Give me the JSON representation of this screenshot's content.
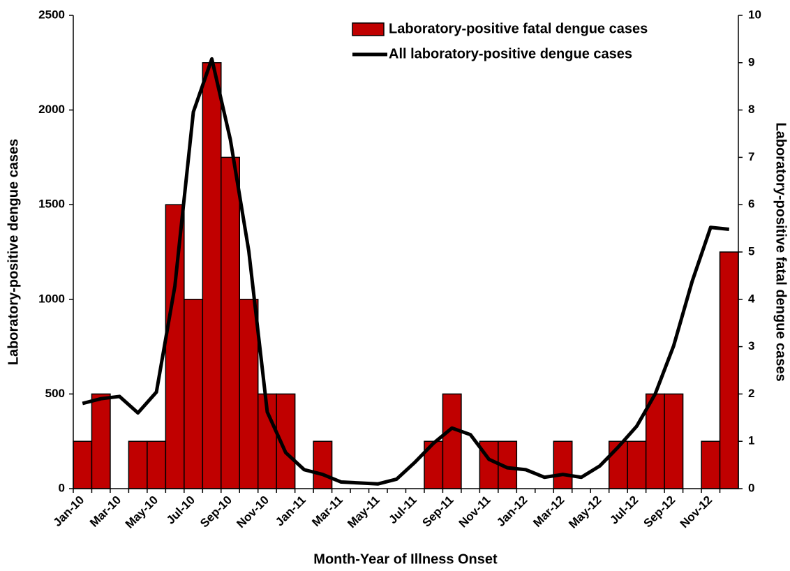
{
  "chart_data": {
    "type": "bar-line",
    "x_label": "Month-Year of Illness Onset",
    "y_label": "Laboratory-positive dengue cases",
    "y2_label": "Laboratory-positive fatal dengue cases",
    "categories": [
      "Jan-10",
      null,
      "Mar-10",
      null,
      "May-10",
      null,
      "Jul-10",
      null,
      "Sep-10",
      null,
      "Nov-10",
      null,
      "Jan-11",
      null,
      "Mar-11",
      null,
      "May-11",
      null,
      "Jul-11",
      null,
      "Sep-11",
      null,
      "Nov-11",
      null,
      "Jan-12",
      null,
      "Mar-12",
      null,
      "May-12",
      null,
      "Jul-12",
      null,
      "Sep-12",
      null,
      "Nov-12",
      null
    ],
    "series": [
      {
        "name": "Laboratory-positive fatal dengue cases",
        "type": "bar",
        "axis": "y2",
        "color": "#c00000",
        "values": [
          1,
          2,
          0,
          1,
          1,
          6,
          4,
          9,
          7,
          4,
          2,
          2,
          0,
          1,
          0,
          0,
          0,
          0,
          0,
          1,
          2,
          0,
          1,
          1,
          0,
          0,
          1,
          0,
          0,
          1,
          1,
          2,
          2,
          0,
          1,
          5
        ]
      },
      {
        "name": "All laboratory-positive dengue cases",
        "type": "line",
        "axis": "y",
        "color": "#000000",
        "values": [
          450,
          475,
          487,
          400,
          510,
          1070,
          1990,
          2270,
          1845,
          1255,
          405,
          190,
          100,
          75,
          35,
          30,
          25,
          50,
          140,
          240,
          320,
          285,
          155,
          110,
          100,
          60,
          75,
          60,
          120,
          220,
          330,
          500,
          755,
          1095,
          1380,
          1370
        ]
      }
    ],
    "ylim": [
      0,
      2500
    ],
    "yticks": [
      0,
      500,
      1000,
      1500,
      2000,
      2500
    ],
    "y2lim": [
      0,
      10
    ],
    "y2ticks": [
      0,
      1,
      2,
      3,
      4,
      5,
      6,
      7,
      8,
      9,
      10
    ],
    "legend": "top-right"
  }
}
